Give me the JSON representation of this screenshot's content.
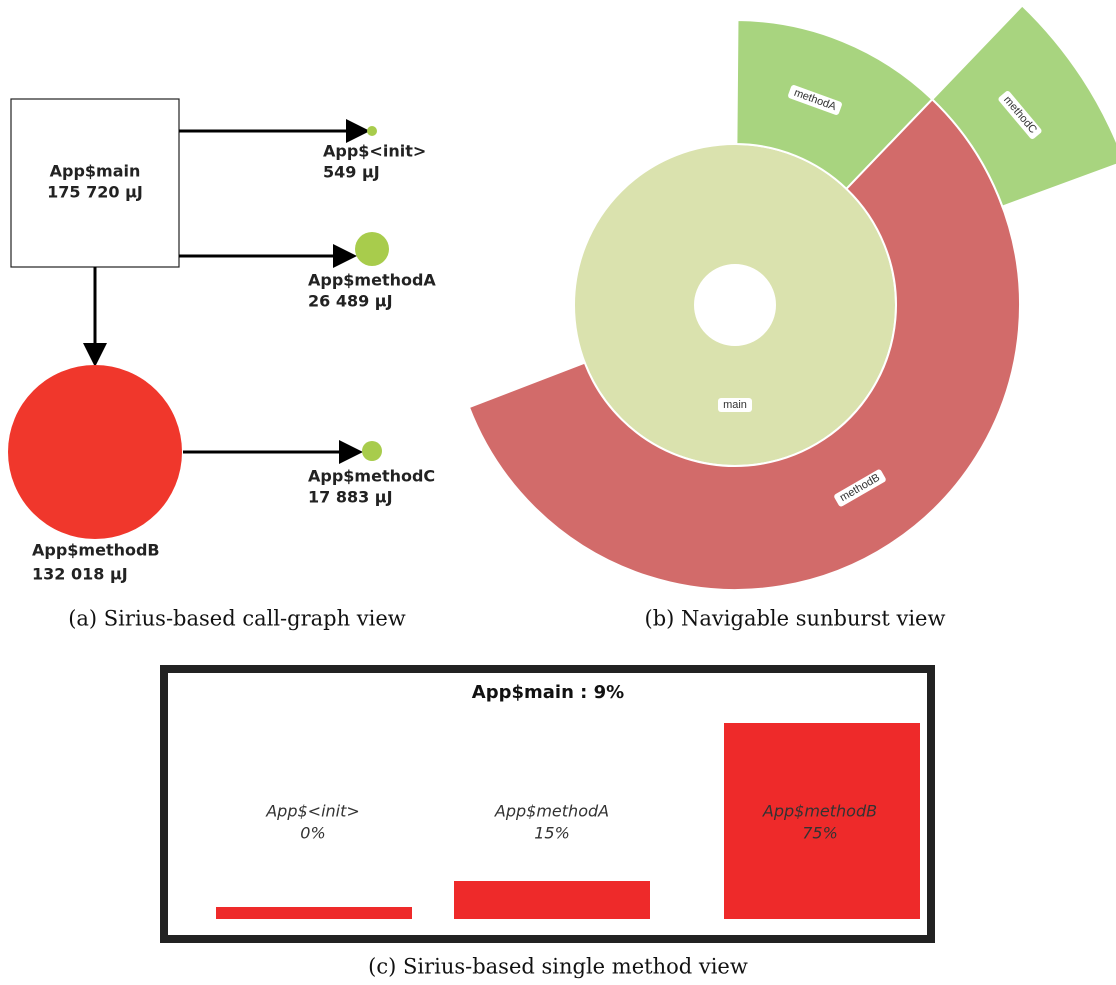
{
  "call_graph": {
    "nodes": [
      {
        "name": "App$main",
        "energy": "175 720 µJ"
      },
      {
        "name": "App$<init>",
        "energy": "549 µJ"
      },
      {
        "name": "App$methodA",
        "energy": "26 489 µJ"
      },
      {
        "name": "App$methodC",
        "energy": "17 883 µJ"
      },
      {
        "name": "App$methodB",
        "energy": "132 018 µJ"
      }
    ],
    "caption": "(a) Sirius-based call-graph view"
  },
  "sunburst": {
    "segments": [
      "main",
      "methodA",
      "methodB",
      "methodC"
    ],
    "caption": "(b) Navigable sunburst view"
  },
  "method_view": {
    "title": "App$main : 9%",
    "items": [
      {
        "name": "App$<init>",
        "percent": "0%"
      },
      {
        "name": "App$methodA",
        "percent": "15%"
      },
      {
        "name": "App$methodB",
        "percent": "75%"
      }
    ],
    "caption": "(c) Sirius-based single method view"
  }
}
